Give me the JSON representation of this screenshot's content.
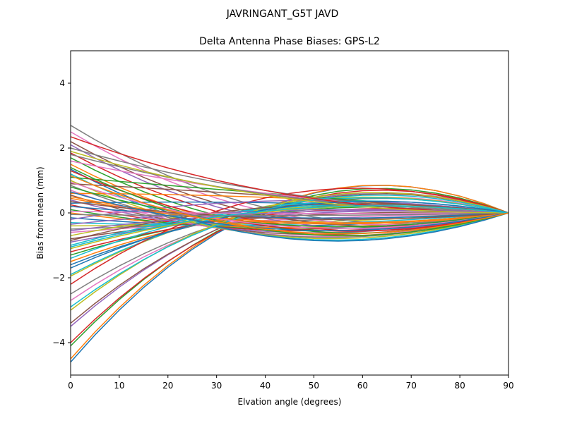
{
  "chart_data": {
    "type": "line",
    "suptitle": "JAVRINGANT_G5T  JAVD",
    "title": "Delta Antenna Phase Biases: GPS-L2",
    "xlabel": "Elvation angle (degrees)",
    "ylabel": "Bias from mean (mm)",
    "xlim": [
      0,
      90
    ],
    "ylim": [
      -5,
      5
    ],
    "xticks": [
      0,
      10,
      20,
      30,
      40,
      50,
      60,
      70,
      80,
      90
    ],
    "yticks": [
      -4,
      -2,
      0,
      2,
      4
    ],
    "grid": false,
    "legend": "none",
    "x": [
      0,
      5,
      10,
      15,
      20,
      25,
      30,
      35,
      40,
      45,
      50,
      55,
      60,
      65,
      70,
      75,
      80,
      85,
      90
    ],
    "series_count": 72,
    "series_description": "72 curves, one per azimuth; each starts at its 0° value, crosses to an opposite-sign mid-elevation value near 45°, and converges to 0 at 90°.",
    "series_start_values": [
      -4.6,
      -4.5,
      -4.1,
      -4.0,
      -3.5,
      -3.4,
      -2.7,
      -2.5,
      -1.95,
      -1.9,
      -1.6,
      -1.5,
      -1.3,
      -1.2,
      -0.9,
      -0.8,
      -0.6,
      -0.5,
      -0.4,
      -0.3,
      -0.15,
      0.0,
      0.1,
      0.25,
      0.4,
      0.55,
      0.7,
      0.85,
      1.0,
      1.2,
      1.35,
      1.5,
      1.7,
      1.85,
      2.1,
      2.2,
      2.5,
      2.7,
      -0.7,
      -1.0,
      0.3,
      0.6,
      1.1,
      -2.2,
      -0.2,
      0.9,
      1.6,
      2.0,
      -3.0,
      -1.4,
      0.2,
      0.5,
      0.8,
      1.3,
      -0.35,
      -0.85,
      0.05,
      1.8,
      -1.1,
      -2.9,
      -1.7,
      0.45,
      1.4,
      2.35,
      -0.55,
      0.35,
      0.95,
      -0.05,
      1.9,
      -1.05,
      0.65,
      1.15
    ],
    "series_mid_values": [
      0.4,
      0.42,
      0.35,
      0.3,
      0.28,
      0.25,
      0.22,
      0.2,
      0.32,
      0.3,
      0.12,
      0.1,
      0.05,
      0.0,
      -0.05,
      -0.1,
      -0.2,
      -0.25,
      -0.3,
      -0.35,
      -0.4,
      -0.45,
      -0.5,
      -0.55,
      -0.6,
      -0.65,
      -0.7,
      -0.72,
      -0.75,
      -0.78,
      -0.8,
      -0.6,
      -0.5,
      -0.4,
      -0.3,
      -0.2,
      -0.1,
      0.0,
      0.15,
      0.18,
      0.3,
      0.45,
      0.55,
      0.6,
      0.38,
      0.5,
      0.52,
      0.58,
      0.35,
      0.25,
      -0.15,
      -0.28,
      -0.38,
      -0.48,
      0.08,
      0.22,
      -0.02,
      0.48,
      0.1,
      0.27,
      0.2,
      -0.32,
      -0.62,
      0.56,
      0.02,
      -0.18,
      -0.42,
      -0.08,
      0.44,
      0.12,
      -0.52,
      -0.58
    ],
    "colors": [
      "#1f77b4",
      "#ff7f0e",
      "#2ca02c",
      "#d62728",
      "#9467bd",
      "#8c564b",
      "#e377c2",
      "#7f7f7f",
      "#bcbd22",
      "#17becf"
    ]
  }
}
